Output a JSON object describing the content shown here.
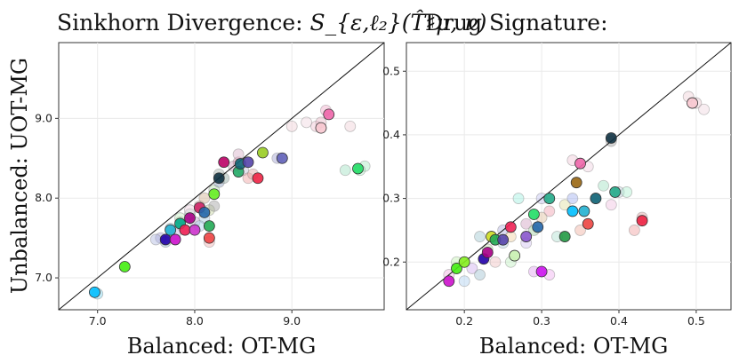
{
  "chart_data": [
    {
      "type": "scatter",
      "title": "Sinkhorn Divergence: ",
      "title_math": "S_{ε,ℓ₂}(T̂♯μ, ν)",
      "xlabel": "Balanced: OT-MG",
      "ylabel": "Unbalanced: UOT-MG",
      "xlim": [
        6.6,
        9.95
      ],
      "ylim": [
        6.6,
        9.95
      ],
      "xticks": [
        "7.0",
        "8.0",
        "9.0"
      ],
      "xtick_values": [
        7.0,
        8.0,
        9.0
      ],
      "yticks": [
        "7.0",
        "8.0",
        "9.0"
      ],
      "ytick_values": [
        7.0,
        8.0,
        9.0
      ],
      "diagonal": true,
      "grid": true,
      "faint_points": [
        [
          7.0,
          6.8,
          "#7fd3ea"
        ],
        [
          7.65,
          7.5,
          "#a8a0d8"
        ],
        [
          7.7,
          7.45,
          "#8fb3c8"
        ],
        [
          7.75,
          7.62,
          "#9ad0d8"
        ],
        [
          7.8,
          7.55,
          "#c8b0e0"
        ],
        [
          7.85,
          7.7,
          "#b0c8a0"
        ],
        [
          7.9,
          7.6,
          "#e6a0b8"
        ],
        [
          7.95,
          7.8,
          "#a8d8c8"
        ],
        [
          8.0,
          7.7,
          "#c0a8d0"
        ],
        [
          8.05,
          7.9,
          "#f0a8a8"
        ],
        [
          8.1,
          7.75,
          "#a0c8e0"
        ],
        [
          8.15,
          7.85,
          "#c8d8a0"
        ],
        [
          8.1,
          8.0,
          "#d0b090"
        ],
        [
          8.2,
          7.9,
          "#a0a0a0"
        ],
        [
          8.2,
          8.1,
          "#b8e0b0"
        ],
        [
          8.25,
          8.2,
          "#8fa0c0"
        ],
        [
          8.25,
          8.3,
          "#a0b0a8"
        ],
        [
          8.3,
          8.25,
          "#90a8a0"
        ],
        [
          8.4,
          8.4,
          "#d0a0c0"
        ],
        [
          8.45,
          8.45,
          "#e090b0"
        ],
        [
          8.5,
          8.35,
          "#c0c0d8"
        ],
        [
          8.55,
          8.25,
          "#f0a0a0"
        ],
        [
          8.6,
          8.3,
          "#e0a0a0"
        ],
        [
          8.45,
          8.55,
          "#d8b0c8"
        ],
        [
          8.85,
          8.5,
          "#a0a0d0"
        ],
        [
          8.9,
          8.5,
          "#9898c8"
        ],
        [
          9.0,
          8.9,
          "#f0d0d8"
        ],
        [
          9.15,
          8.95,
          "#f0d8e0"
        ],
        [
          9.25,
          8.9,
          "#f0c0d0"
        ],
        [
          9.3,
          8.95,
          "#e8b8c8"
        ],
        [
          9.35,
          9.1,
          "#f0a8c8"
        ],
        [
          9.6,
          8.9,
          "#f0d0d8"
        ],
        [
          9.55,
          8.35,
          "#a0e0c0"
        ],
        [
          9.75,
          8.4,
          "#a8e8c0"
        ],
        [
          9.7,
          8.35,
          "#b0f0c8"
        ],
        [
          8.15,
          7.45,
          "#f0b0b0"
        ],
        [
          7.6,
          7.48,
          "#b0b8e0"
        ],
        [
          8.05,
          7.65,
          "#a8d0f0"
        ],
        [
          7.85,
          7.75,
          "#c8f0c0"
        ],
        [
          7.95,
          7.85,
          "#f0d0e0"
        ]
      ],
      "points": [
        [
          6.97,
          6.82,
          "#00bfff"
        ],
        [
          7.28,
          7.14,
          "#44ee11"
        ],
        [
          7.7,
          7.48,
          "#2200aa"
        ],
        [
          7.8,
          7.48,
          "#cc11cc"
        ],
        [
          7.75,
          7.6,
          "#22b0d0"
        ],
        [
          7.85,
          7.68,
          "#00aa88"
        ],
        [
          7.95,
          7.75,
          "#aa0088"
        ],
        [
          7.9,
          7.6,
          "#ee2255"
        ],
        [
          8.0,
          7.6,
          "#cc33cc"
        ],
        [
          8.05,
          7.88,
          "#cc2266"
        ],
        [
          8.1,
          7.82,
          "#2266aa"
        ],
        [
          8.15,
          7.5,
          "#ee4444"
        ],
        [
          8.15,
          7.65,
          "#22aa55"
        ],
        [
          8.2,
          8.05,
          "#66ee22"
        ],
        [
          8.25,
          8.25,
          "#113344"
        ],
        [
          8.3,
          8.45,
          "#bb0066"
        ],
        [
          8.45,
          8.33,
          "#22aa66"
        ],
        [
          8.47,
          8.43,
          "#116677"
        ],
        [
          8.55,
          8.45,
          "#5544aa"
        ],
        [
          8.65,
          8.25,
          "#ee2244"
        ],
        [
          8.7,
          8.57,
          "#99cc22"
        ],
        [
          8.9,
          8.5,
          "#6666bb"
        ],
        [
          9.38,
          9.05,
          "#ee66aa"
        ],
        [
          9.3,
          8.88,
          "#f8c8d0"
        ],
        [
          9.68,
          8.37,
          "#22dd66"
        ]
      ]
    },
    {
      "type": "scatter",
      "title": "Drug Signature:",
      "xlabel": "Balanced: OT-MG",
      "ylabel": "",
      "xlim": [
        0.125,
        0.545
      ],
      "ylim": [
        0.125,
        0.545
      ],
      "xticks": [
        "0.2",
        "0.3",
        "0.4",
        "0.5"
      ],
      "xtick_values": [
        0.2,
        0.3,
        0.4,
        0.5
      ],
      "yticks": [
        "0.2",
        "0.3",
        "0.4",
        "0.5"
      ],
      "ytick_values": [
        0.2,
        0.3,
        0.4,
        0.5
      ],
      "diagonal": true,
      "grid": true,
      "faint_points": [
        [
          0.18,
          0.18,
          "#f0b0e0"
        ],
        [
          0.19,
          0.2,
          "#c0f0b0"
        ],
        [
          0.2,
          0.17,
          "#b0d0f0"
        ],
        [
          0.21,
          0.19,
          "#d0b0f0"
        ],
        [
          0.22,
          0.24,
          "#a0c8d0"
        ],
        [
          0.23,
          0.22,
          "#c8e0b0"
        ],
        [
          0.24,
          0.2,
          "#f0c0c0"
        ],
        [
          0.25,
          0.25,
          "#b0b0e0"
        ],
        [
          0.26,
          0.24,
          "#f0d0a0"
        ],
        [
          0.27,
          0.3,
          "#a0f0e0"
        ],
        [
          0.28,
          0.26,
          "#d0a0c0"
        ],
        [
          0.29,
          0.25,
          "#a0d0a0"
        ],
        [
          0.3,
          0.3,
          "#c0c0f0"
        ],
        [
          0.31,
          0.28,
          "#f0a0b0"
        ],
        [
          0.32,
          0.24,
          "#b0e0d0"
        ],
        [
          0.33,
          0.29,
          "#e0e0a0"
        ],
        [
          0.34,
          0.3,
          "#a0b0f0"
        ],
        [
          0.35,
          0.25,
          "#f0b0a0"
        ],
        [
          0.36,
          0.26,
          "#d0f0b0"
        ],
        [
          0.37,
          0.3,
          "#b0a0d0"
        ],
        [
          0.38,
          0.32,
          "#a0e0c0"
        ],
        [
          0.39,
          0.29,
          "#f0c0e0"
        ],
        [
          0.4,
          0.31,
          "#c0d0e0"
        ],
        [
          0.41,
          0.31,
          "#b0f0d0"
        ],
        [
          0.42,
          0.25,
          "#f0a0a0"
        ],
        [
          0.43,
          0.27,
          "#e0a0a0"
        ],
        [
          0.34,
          0.36,
          "#f0c8d8"
        ],
        [
          0.36,
          0.35,
          "#f0d0e0"
        ],
        [
          0.39,
          0.39,
          "#a0a0a0"
        ],
        [
          0.49,
          0.46,
          "#f0d0d8"
        ],
        [
          0.5,
          0.45,
          "#e8c8d0"
        ],
        [
          0.51,
          0.44,
          "#f0d8e0"
        ],
        [
          0.29,
          0.185,
          "#e0a0f0"
        ],
        [
          0.31,
          0.18,
          "#f0b0f0"
        ],
        [
          0.2,
          0.2,
          "#a0f0a0"
        ],
        [
          0.22,
          0.18,
          "#a0c0d0"
        ],
        [
          0.26,
          0.2,
          "#c0f0c0"
        ],
        [
          0.28,
          0.23,
          "#d0c0f0"
        ],
        [
          0.25,
          0.23,
          "#b0d0e0"
        ],
        [
          0.3,
          0.27,
          "#e0c0a0"
        ]
      ],
      "points": [
        [
          0.18,
          0.17,
          "#cc11cc"
        ],
        [
          0.19,
          0.19,
          "#44ee11"
        ],
        [
          0.2,
          0.2,
          "#88ee22"
        ],
        [
          0.225,
          0.205,
          "#2200aa"
        ],
        [
          0.23,
          0.215,
          "#aa0088"
        ],
        [
          0.235,
          0.24,
          "#ccdd22"
        ],
        [
          0.24,
          0.235,
          "#22aa55"
        ],
        [
          0.25,
          0.235,
          "#5544aa"
        ],
        [
          0.26,
          0.255,
          "#ee2255"
        ],
        [
          0.265,
          0.21,
          "#c8f0b0"
        ],
        [
          0.28,
          0.24,
          "#8855cc"
        ],
        [
          0.29,
          0.275,
          "#22dd66"
        ],
        [
          0.295,
          0.255,
          "#2266aa"
        ],
        [
          0.3,
          0.185,
          "#cc11ee"
        ],
        [
          0.31,
          0.3,
          "#22aa88"
        ],
        [
          0.33,
          0.24,
          "#229944"
        ],
        [
          0.34,
          0.28,
          "#00bfff"
        ],
        [
          0.345,
          0.325,
          "#996611"
        ],
        [
          0.35,
          0.355,
          "#ee66aa"
        ],
        [
          0.355,
          0.28,
          "#22b0d0"
        ],
        [
          0.36,
          0.26,
          "#ee4444"
        ],
        [
          0.37,
          0.3,
          "#116677"
        ],
        [
          0.39,
          0.395,
          "#113344"
        ],
        [
          0.395,
          0.31,
          "#22aa88"
        ],
        [
          0.43,
          0.265,
          "#ee2244"
        ],
        [
          0.495,
          0.45,
          "#f8c8d0"
        ]
      ]
    }
  ]
}
